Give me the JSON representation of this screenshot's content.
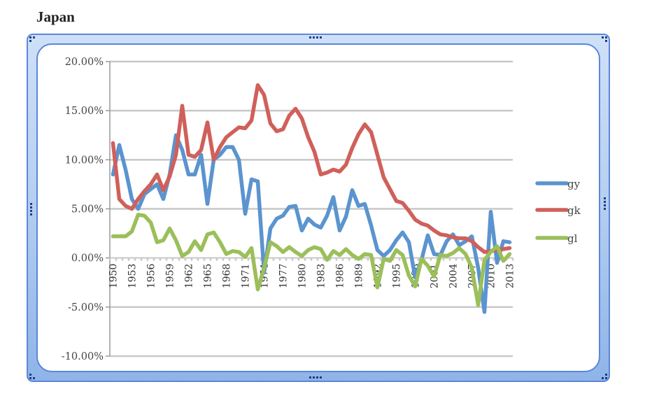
{
  "page": {
    "title": "Japan"
  },
  "colors": {
    "gy": "#5b94cf",
    "gk": "#d0605a",
    "gl": "#9bbf5a",
    "grid": "#c8c8c8",
    "axis": "#9a9a9a",
    "frame_border": "#5b87d8"
  },
  "chart_data": {
    "type": "line",
    "title": "Japan",
    "xlabel": "",
    "ylabel": "",
    "ylim": [
      -0.1,
      0.2
    ],
    "y_ticks": [
      "20.00%",
      "15.00%",
      "10.00%",
      "5.00%",
      "0.00%",
      "-5.00%",
      "-10.00%"
    ],
    "y_tick_values": [
      0.2,
      0.15,
      0.1,
      0.05,
      0.0,
      -0.05,
      -0.1
    ],
    "grid": true,
    "legend_position": "right",
    "x_tick_labels": [
      "1950",
      "1953",
      "1956",
      "1959",
      "1962",
      "1965",
      "1968",
      "1971",
      "1974",
      "1977",
      "1980",
      "1983",
      "1986",
      "1989",
      "1992",
      "1995",
      "1998",
      "2001",
      "2004",
      "2007",
      "2010",
      "2013"
    ],
    "x": [
      1950,
      1951,
      1952,
      1953,
      1954,
      1955,
      1956,
      1957,
      1958,
      1959,
      1960,
      1961,
      1962,
      1963,
      1964,
      1965,
      1966,
      1967,
      1968,
      1969,
      1970,
      1971,
      1972,
      1973,
      1974,
      1975,
      1976,
      1977,
      1978,
      1979,
      1980,
      1981,
      1982,
      1983,
      1984,
      1985,
      1986,
      1987,
      1988,
      1989,
      1990,
      1991,
      1992,
      1993,
      1994,
      1995,
      1996,
      1997,
      1998,
      1999,
      2000,
      2001,
      2002,
      2003,
      2004,
      2005,
      2006,
      2007,
      2008,
      2009,
      2010,
      2011,
      2012,
      2013
    ],
    "series": [
      {
        "name": "gy",
        "values": [
          0.085,
          0.115,
          0.09,
          0.06,
          0.05,
          0.065,
          0.07,
          0.075,
          0.06,
          0.085,
          0.125,
          0.11,
          0.085,
          0.085,
          0.105,
          0.055,
          0.1,
          0.105,
          0.113,
          0.113,
          0.1,
          0.045,
          0.08,
          0.078,
          -0.015,
          0.03,
          0.04,
          0.043,
          0.052,
          0.053,
          0.028,
          0.04,
          0.034,
          0.031,
          0.043,
          0.062,
          0.028,
          0.042,
          0.069,
          0.053,
          0.055,
          0.033,
          0.008,
          0.002,
          0.008,
          0.018,
          0.026,
          0.016,
          -0.02,
          -0.002,
          0.023,
          0.004,
          0.003,
          0.017,
          0.024,
          0.013,
          0.017,
          0.022,
          -0.01,
          -0.055,
          0.047,
          -0.005,
          0.017,
          0.016
        ]
      },
      {
        "name": "gk",
        "values": [
          0.117,
          0.06,
          0.053,
          0.05,
          0.06,
          0.068,
          0.075,
          0.085,
          0.069,
          0.083,
          0.105,
          0.155,
          0.105,
          0.103,
          0.11,
          0.138,
          0.1,
          0.113,
          0.123,
          0.128,
          0.133,
          0.132,
          0.14,
          0.176,
          0.166,
          0.137,
          0.129,
          0.131,
          0.145,
          0.152,
          0.142,
          0.123,
          0.108,
          0.085,
          0.087,
          0.09,
          0.088,
          0.095,
          0.112,
          0.126,
          0.136,
          0.128,
          0.105,
          0.082,
          0.07,
          0.058,
          0.056,
          0.048,
          0.039,
          0.035,
          0.033,
          0.028,
          0.024,
          0.023,
          0.021,
          0.02,
          0.02,
          0.017,
          0.011,
          0.006,
          0.007,
          0.008,
          0.009,
          0.01
        ]
      },
      {
        "name": "gl",
        "values": [
          0.022,
          0.022,
          0.022,
          0.027,
          0.044,
          0.043,
          0.036,
          0.016,
          0.018,
          0.03,
          0.018,
          0.002,
          0.006,
          0.017,
          0.008,
          0.024,
          0.026,
          0.016,
          0.004,
          0.007,
          0.006,
          0.001,
          0.01,
          -0.032,
          -0.01,
          0.016,
          0.012,
          0.006,
          0.011,
          0.006,
          0.002,
          0.008,
          0.011,
          0.009,
          -0.002,
          0.007,
          0.003,
          0.009,
          0.003,
          -0.001,
          0.004,
          0.003,
          -0.03,
          -0.001,
          -0.003,
          0.008,
          0.003,
          -0.018,
          -0.029,
          -0.001,
          -0.008,
          -0.019,
          0.003,
          0.002,
          0.005,
          0.01,
          0.004,
          -0.01,
          -0.048,
          -0.002,
          0.006,
          0.012,
          -0.003,
          0.004
        ]
      }
    ]
  },
  "legend": {
    "items": [
      {
        "label": "gy"
      },
      {
        "label": "gk"
      },
      {
        "label": "gl"
      }
    ]
  }
}
